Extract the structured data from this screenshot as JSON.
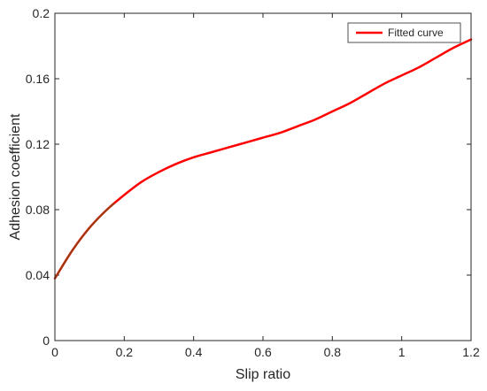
{
  "chart_data": {
    "type": "line",
    "title": "",
    "xlabel": "Slip ratio",
    "ylabel": "Adhesion coefficient",
    "xlim": [
      0,
      1.2
    ],
    "ylim": [
      0,
      0.2
    ],
    "xticks": [
      0,
      0.2,
      0.4,
      0.6,
      0.8,
      1,
      1.2
    ],
    "xtick_labels": [
      "0",
      "0.2",
      "0.4",
      "0.6",
      "0.8",
      "1",
      "1.2"
    ],
    "yticks": [
      0,
      0.04,
      0.08,
      0.12,
      0.16,
      0.2
    ],
    "ytick_labels": [
      "0",
      "0.04",
      "0.08",
      "0.12",
      "0.16",
      "0.2"
    ],
    "grid": false,
    "legend": {
      "position": "top-right",
      "entries": [
        "Fitted curve"
      ]
    },
    "series": [
      {
        "name": "Fitted curve",
        "color": "#ff0000",
        "x": [
          0,
          0.05,
          0.1,
          0.15,
          0.2,
          0.25,
          0.3,
          0.35,
          0.4,
          0.45,
          0.5,
          0.55,
          0.6,
          0.65,
          0.7,
          0.75,
          0.8,
          0.85,
          0.9,
          0.95,
          1.0,
          1.05,
          1.1,
          1.15,
          1.2
        ],
        "y": [
          0.038,
          0.055,
          0.069,
          0.08,
          0.089,
          0.097,
          0.103,
          0.108,
          0.112,
          0.115,
          0.118,
          0.121,
          0.124,
          0.127,
          0.131,
          0.135,
          0.14,
          0.145,
          0.151,
          0.157,
          0.162,
          0.167,
          0.173,
          0.179,
          0.184
        ]
      }
    ],
    "highlight": {
      "color": "#8b4513",
      "x_range": [
        0,
        0.17
      ]
    }
  }
}
